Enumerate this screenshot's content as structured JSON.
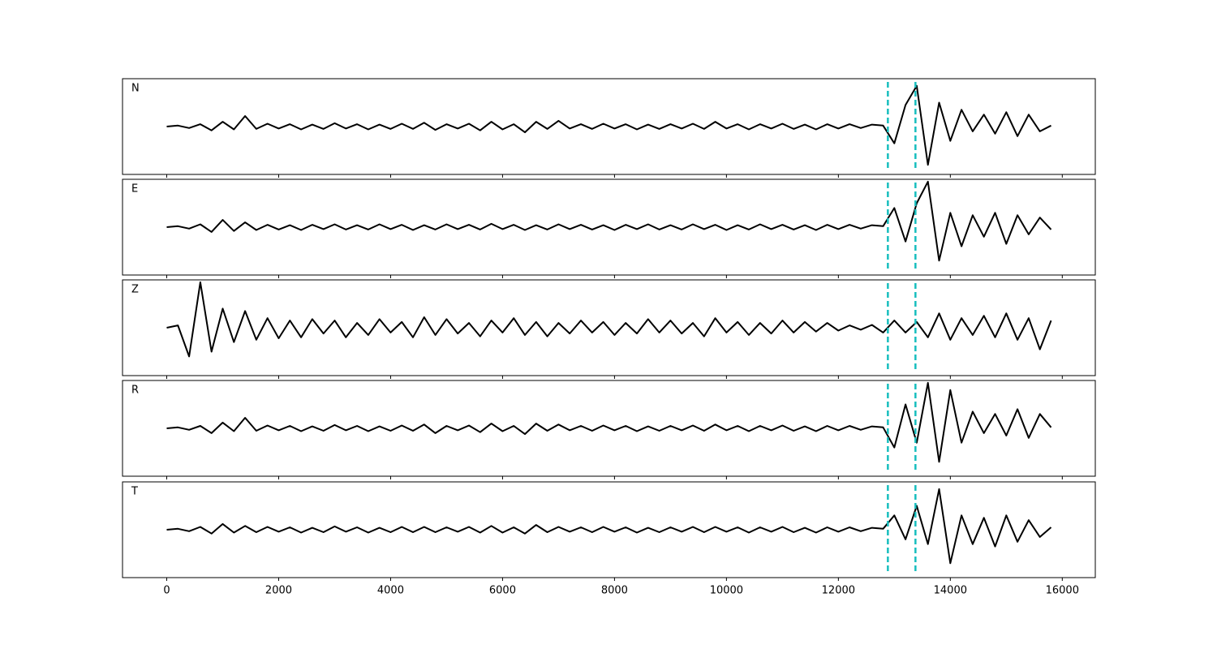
{
  "chart_data": {
    "type": "line",
    "x": [
      0,
      200,
      400,
      600,
      800,
      1000,
      1200,
      1400,
      1600,
      1800,
      2000,
      2200,
      2400,
      2600,
      2800,
      3000,
      3200,
      3400,
      3600,
      3800,
      4000,
      4200,
      4400,
      4600,
      4800,
      5000,
      5200,
      5400,
      5600,
      5800,
      6000,
      6200,
      6400,
      6600,
      6800,
      7000,
      7200,
      7400,
      7600,
      7800,
      8000,
      8200,
      8400,
      8600,
      8800,
      9000,
      9200,
      9400,
      9600,
      9800,
      10000,
      10200,
      10400,
      10600,
      10800,
      11000,
      11200,
      11400,
      11600,
      11800,
      12000,
      12200,
      12400,
      12600,
      12800,
      13000,
      13200,
      13400,
      13600,
      13800,
      14000,
      14200,
      14400,
      14600,
      14800,
      15000,
      15200,
      15400,
      15600,
      15800
    ],
    "xlim": [
      -790,
      16590
    ],
    "xticks": [
      0,
      2000,
      4000,
      6000,
      8000,
      10000,
      12000,
      14000,
      16000
    ],
    "ylim": [
      -1,
      1
    ],
    "color": "#000000",
    "vlines": [
      12884,
      13377
    ],
    "vline_color": "#17bebe",
    "series": [
      {
        "name": "N",
        "values": [
          0,
          0.02,
          -0.03,
          0.05,
          -0.08,
          0.1,
          -0.06,
          0.22,
          -0.05,
          0.06,
          -0.04,
          0.05,
          -0.06,
          0.04,
          -0.05,
          0.07,
          -0.04,
          0.05,
          -0.06,
          0.04,
          -0.05,
          0.06,
          -0.05,
          0.08,
          -0.07,
          0.05,
          -0.04,
          0.06,
          -0.08,
          0.1,
          -0.06,
          0.05,
          -0.12,
          0.1,
          -0.05,
          0.12,
          -0.04,
          0.05,
          -0.05,
          0.06,
          -0.04,
          0.05,
          -0.06,
          0.04,
          -0.05,
          0.05,
          -0.04,
          0.06,
          -0.05,
          0.1,
          -0.04,
          0.05,
          -0.06,
          0.05,
          -0.04,
          0.06,
          -0.05,
          0.04,
          -0.06,
          0.05,
          -0.04,
          0.05,
          -0.03,
          0.04,
          0.02,
          -0.35,
          0.45,
          0.85,
          -0.8,
          0.5,
          -0.3,
          0.35,
          -0.1,
          0.25,
          -0.15,
          0.3,
          -0.2,
          0.25,
          -0.1,
          0.02
        ]
      },
      {
        "name": "E",
        "values": [
          0,
          0.02,
          -0.03,
          0.06,
          -0.1,
          0.15,
          -0.08,
          0.1,
          -0.06,
          0.05,
          -0.05,
          0.04,
          -0.06,
          0.05,
          -0.04,
          0.06,
          -0.05,
          0.04,
          -0.05,
          0.06,
          -0.04,
          0.05,
          -0.06,
          0.04,
          -0.05,
          0.06,
          -0.04,
          0.05,
          -0.05,
          0.07,
          -0.04,
          0.05,
          -0.06,
          0.04,
          -0.05,
          0.06,
          -0.04,
          0.05,
          -0.05,
          0.04,
          -0.06,
          0.05,
          -0.04,
          0.06,
          -0.05,
          0.04,
          -0.05,
          0.06,
          -0.04,
          0.05,
          -0.06,
          0.04,
          -0.05,
          0.06,
          -0.04,
          0.05,
          -0.05,
          0.04,
          -0.06,
          0.05,
          -0.04,
          0.05,
          -0.03,
          0.04,
          0.02,
          0.4,
          -0.3,
          0.5,
          0.95,
          -0.7,
          0.3,
          -0.4,
          0.25,
          -0.2,
          0.3,
          -0.35,
          0.25,
          -0.15,
          0.2,
          -0.05
        ]
      },
      {
        "name": "Z",
        "values": [
          0,
          0.05,
          -0.6,
          0.95,
          -0.5,
          0.4,
          -0.3,
          0.35,
          -0.25,
          0.2,
          -0.22,
          0.15,
          -0.2,
          0.18,
          -0.12,
          0.15,
          -0.2,
          0.1,
          -0.15,
          0.18,
          -0.1,
          0.12,
          -0.2,
          0.22,
          -0.15,
          0.18,
          -0.12,
          0.1,
          -0.18,
          0.15,
          -0.1,
          0.2,
          -0.15,
          0.12,
          -0.18,
          0.1,
          -0.12,
          0.15,
          -0.1,
          0.12,
          -0.15,
          0.1,
          -0.12,
          0.18,
          -0.1,
          0.15,
          -0.12,
          0.1,
          -0.18,
          0.2,
          -0.1,
          0.12,
          -0.15,
          0.1,
          -0.12,
          0.15,
          -0.1,
          0.12,
          -0.08,
          0.1,
          -0.06,
          0.05,
          -0.04,
          0.06,
          -0.1,
          0.15,
          -0.1,
          0.12,
          -0.2,
          0.3,
          -0.25,
          0.2,
          -0.15,
          0.25,
          -0.2,
          0.3,
          -0.25,
          0.2,
          -0.45,
          0.15
        ]
      },
      {
        "name": "R",
        "values": [
          0,
          0.02,
          -0.03,
          0.05,
          -0.1,
          0.12,
          -0.06,
          0.22,
          -0.05,
          0.06,
          -0.04,
          0.05,
          -0.06,
          0.04,
          -0.05,
          0.07,
          -0.04,
          0.05,
          -0.06,
          0.04,
          -0.05,
          0.06,
          -0.05,
          0.08,
          -0.1,
          0.05,
          -0.04,
          0.06,
          -0.08,
          0.1,
          -0.06,
          0.05,
          -0.12,
          0.1,
          -0.05,
          0.08,
          -0.04,
          0.05,
          -0.05,
          0.06,
          -0.04,
          0.05,
          -0.06,
          0.04,
          -0.05,
          0.05,
          -0.04,
          0.06,
          -0.05,
          0.08,
          -0.04,
          0.05,
          -0.06,
          0.05,
          -0.04,
          0.06,
          -0.05,
          0.04,
          -0.06,
          0.05,
          -0.04,
          0.05,
          -0.03,
          0.04,
          0.02,
          -0.4,
          0.5,
          -0.3,
          0.95,
          -0.7,
          0.8,
          -0.3,
          0.35,
          -0.1,
          0.3,
          -0.15,
          0.4,
          -0.2,
          0.3,
          0.02
        ]
      },
      {
        "name": "T",
        "values": [
          0,
          0.02,
          -0.03,
          0.06,
          -0.08,
          0.12,
          -0.06,
          0.08,
          -0.05,
          0.06,
          -0.04,
          0.05,
          -0.06,
          0.04,
          -0.05,
          0.07,
          -0.04,
          0.05,
          -0.06,
          0.04,
          -0.05,
          0.06,
          -0.05,
          0.06,
          -0.05,
          0.05,
          -0.04,
          0.06,
          -0.06,
          0.08,
          -0.06,
          0.05,
          -0.08,
          0.1,
          -0.05,
          0.06,
          -0.04,
          0.05,
          -0.05,
          0.06,
          -0.04,
          0.05,
          -0.06,
          0.04,
          -0.05,
          0.05,
          -0.04,
          0.06,
          -0.05,
          0.06,
          -0.04,
          0.05,
          -0.06,
          0.05,
          -0.04,
          0.06,
          -0.05,
          0.04,
          -0.06,
          0.05,
          -0.04,
          0.05,
          -0.03,
          0.04,
          0.02,
          0.3,
          -0.2,
          0.5,
          -0.3,
          0.85,
          -0.7,
          0.3,
          -0.3,
          0.25,
          -0.35,
          0.3,
          -0.25,
          0.2,
          -0.15,
          0.05
        ]
      }
    ]
  }
}
